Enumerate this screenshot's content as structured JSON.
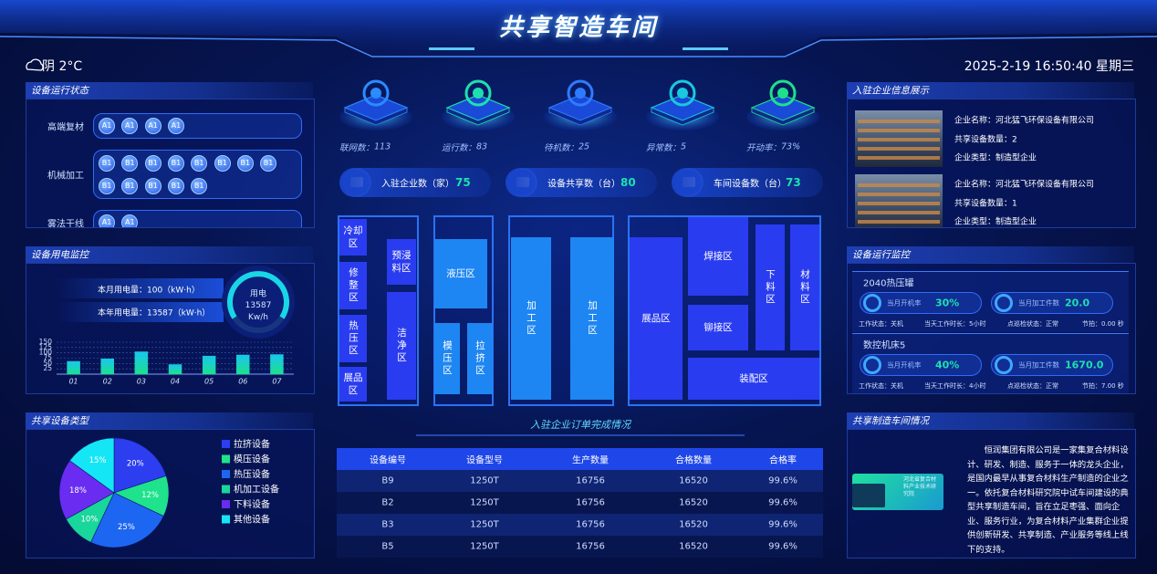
{
  "header": {
    "title": "共享智造车间",
    "weather": "阴 2°C",
    "datetime": "2025-2-19 16:50:40 星期三"
  },
  "device_status": {
    "title": "设备运行状态",
    "rows": [
      {
        "label": "高端复材",
        "chips": [
          "A1",
          "A1",
          "A1",
          "A1"
        ]
      },
      {
        "label": "机械加工",
        "chips": [
          "B1",
          "B1",
          "B1",
          "B1",
          "B1",
          "B1",
          "B1",
          "B1",
          "B1",
          "B1",
          "B1",
          "B1",
          "B1"
        ]
      },
      {
        "label": "雾法干线",
        "chips": [
          "A1",
          "A1"
        ]
      }
    ]
  },
  "power": {
    "title": "设备用电监控",
    "month": "本月用电量：100（kW·h）",
    "year": "本年用电量：13587（kW·h）",
    "gauge": {
      "label": "用电",
      "value": 13587,
      "unit": "Kw/h"
    },
    "chart": {
      "type": "bar",
      "categories": [
        "01",
        "02",
        "03",
        "04",
        "05",
        "06",
        "07"
      ],
      "values": [
        60,
        72,
        105,
        45,
        85,
        90,
        92
      ],
      "ylim": [
        0,
        150
      ],
      "yticks": [
        25,
        50,
        75,
        100,
        125,
        150
      ],
      "grid": true,
      "color": "#19d6c4"
    }
  },
  "equipment_types": {
    "title": "共享设备类型",
    "chart": {
      "type": "pie",
      "categories": [
        "拉挤设备",
        "模压设备",
        "热压设备",
        "机加工设备",
        "下料设备",
        "其他设备"
      ],
      "values": [
        20,
        12,
        25,
        10,
        18,
        15
      ],
      "value_labels": [
        "20%",
        "12%",
        "25%",
        "10%",
        "18%",
        "15%"
      ],
      "colors": [
        "#2c3ef0",
        "#1fe28c",
        "#1d66f2",
        "#19d69a",
        "#6a2cf0",
        "#15e6f6"
      ]
    }
  },
  "stats": [
    {
      "label": "联网数：",
      "value": 113
    },
    {
      "label": "运行数：",
      "value": 83
    },
    {
      "label": "待机数：",
      "value": 25
    },
    {
      "label": "异常数：",
      "value": 5
    },
    {
      "label": "开动率：",
      "value": "73%"
    }
  ],
  "counts": [
    {
      "label": "入驻企业数（家）",
      "value": 75
    },
    {
      "label": "设备共享数（台）",
      "value": 80
    },
    {
      "label": "车间设备数（台）",
      "value": 73
    }
  ],
  "floor": {
    "areas": [
      "冷却区",
      "修整区",
      "热压区",
      "展品区",
      "预浸料区",
      "洁净区",
      "液压区",
      "模压区",
      "拉挤区",
      "加工区",
      "加工区",
      "展品区",
      "焊接区",
      "下料区",
      "材料区",
      "铆接区",
      "装配区"
    ]
  },
  "orders": {
    "title": "入驻企业订单完成情况",
    "columns": [
      "设备编号",
      "设备型号",
      "生产数量",
      "合格数量",
      "合格率"
    ],
    "rows": [
      [
        "B9",
        "1250T",
        16756,
        16520,
        "99.6%"
      ],
      [
        "B2",
        "1250T",
        16756,
        16520,
        "99.6%"
      ],
      [
        "B3",
        "1250T",
        16756,
        16520,
        "99.6%"
      ],
      [
        "B5",
        "1250T",
        16756,
        16520,
        "99.6%"
      ]
    ]
  },
  "companies": {
    "title": "入驻企业信息展示",
    "items": [
      {
        "name": "企业名称：河北猛飞环保设备有限公司",
        "devices": "共享设备数量：2",
        "type": "企业类型：制造型企业"
      },
      {
        "name": "企业名称：河北猛飞环保设备有限公司",
        "devices": "共享设备数量：1",
        "type": "企业类型：制造型企业"
      }
    ]
  },
  "monitor": {
    "title": "设备运行监控",
    "machines": [
      {
        "name": "2040热压罐",
        "rate_label": "当月开机率",
        "rate": "30%",
        "count_label": "当月加工件数",
        "count": "20.0",
        "status": "工作状态：关机",
        "hours": "当天工作时长：5小时",
        "inspection": "点巡检状态：正常",
        "beat": "节拍：0.00 秒"
      },
      {
        "name": "数控机床5",
        "rate_label": "当月开机率",
        "rate": "40%",
        "count_label": "当月加工件数",
        "count": "1670.0",
        "status": "工作状态：关机",
        "hours": "当天工作时长：4小时",
        "inspection": "点巡检状态：正常",
        "beat": "节拍：7.00 秒"
      }
    ]
  },
  "workshop": {
    "title": "共享制造车间情况",
    "logo": "河北省复合材料产业技术研究院",
    "text": "恒润集团有限公司是一家集复合材料设计、研发、制造、服务于一体的龙头企业，是国内最早从事复合材料生产制造的企业之一。依托复合材料研究院中试车间建设的典型共享制造车间，旨在立足枣强、面向企业、服务行业，为复合材料产业集群企业提供创新研发、共享制造、产业服务等线上线下的支持。"
  }
}
